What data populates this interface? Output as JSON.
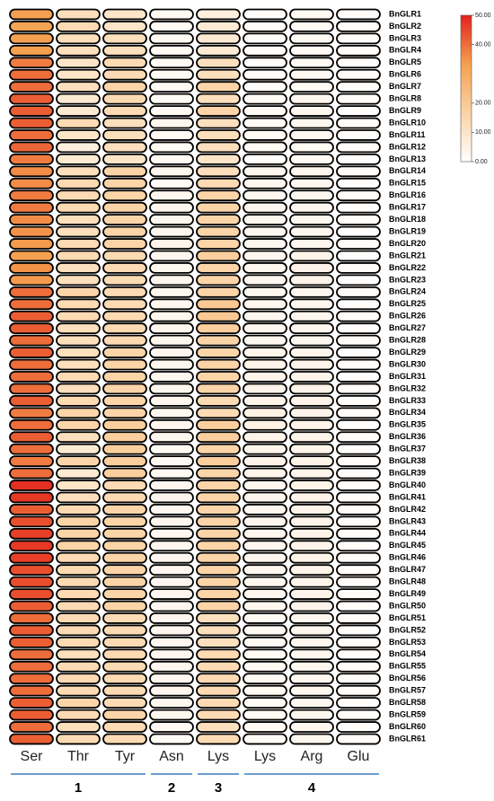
{
  "chart_data": {
    "type": "heatmap",
    "categories": [
      "BnGLR1",
      "BnGLR2",
      "BnGLR3",
      "BnGLR4",
      "BnGLR5",
      "BnGLR6",
      "BnGLR7",
      "BnGLR8",
      "BnGLR9",
      "BnGLR10",
      "BnGLR11",
      "BnGLR12",
      "BnGLR13",
      "BnGLR14",
      "BnGLR15",
      "BnGLR16",
      "BnGLR17",
      "BnGLR18",
      "BnGLR19",
      "BnGLR20",
      "BnGLR21",
      "BnGLR22",
      "BnGLR23",
      "BnGLR24",
      "BnGLR25",
      "BnGLR26",
      "BnGLR27",
      "BnGLR28",
      "BnGLR29",
      "BnGLR30",
      "BnGLR31",
      "BnGLR32",
      "BnGLR33",
      "BnGLR34",
      "BnGLR35",
      "BnGLR36",
      "BnGLR37",
      "BnGLR38",
      "BnGLR39",
      "BnGLR40",
      "BnGLR41",
      "BnGLR42",
      "BnGLR43",
      "BnGLR44",
      "BnGLR45",
      "BnGLR46",
      "BnGLR47",
      "BnGLR48",
      "BnGLR49",
      "BnGLR50",
      "BnGLR51",
      "BnGLR52",
      "BnGLR53",
      "BnGLR54",
      "BnGLR55",
      "BnGLR56",
      "BnGLR57",
      "BnGLR58",
      "BnGLR59",
      "BnGLR60",
      "BnGLR61"
    ],
    "series": [
      {
        "name": "Ser",
        "values": [
          33,
          32,
          33,
          33,
          38,
          40,
          40,
          42,
          42,
          42,
          40,
          41,
          38,
          36,
          36,
          38,
          38,
          36,
          35,
          34,
          33,
          35,
          34,
          40,
          40,
          42,
          42,
          40,
          42,
          40,
          40,
          40,
          42,
          38,
          40,
          42,
          40,
          38,
          40,
          48,
          47,
          42,
          44,
          46,
          47,
          46,
          44,
          44,
          44,
          42,
          40,
          42,
          42,
          40,
          40,
          40,
          40,
          42,
          42,
          40,
          42
        ]
      },
      {
        "name": "Thr",
        "values": [
          12,
          14,
          12,
          12,
          10,
          10,
          12,
          8,
          8,
          14,
          10,
          6,
          8,
          12,
          14,
          14,
          14,
          12,
          12,
          14,
          14,
          12,
          12,
          16,
          14,
          14,
          12,
          12,
          12,
          12,
          14,
          12,
          14,
          16,
          16,
          12,
          8,
          16,
          8,
          10,
          12,
          14,
          16,
          16,
          16,
          14,
          14,
          14,
          14,
          14,
          14,
          14,
          14,
          12,
          14,
          14,
          14,
          16,
          14,
          12,
          14
        ]
      },
      {
        "name": "Tyr",
        "values": [
          10,
          10,
          12,
          12,
          14,
          14,
          16,
          14,
          14,
          12,
          12,
          12,
          10,
          16,
          16,
          16,
          16,
          16,
          16,
          16,
          14,
          14,
          14,
          14,
          14,
          14,
          14,
          14,
          16,
          16,
          16,
          16,
          16,
          16,
          18,
          18,
          18,
          18,
          18,
          14,
          14,
          16,
          16,
          16,
          16,
          16,
          16,
          16,
          16,
          16,
          14,
          14,
          14,
          14,
          14,
          14,
          14,
          14,
          16,
          14,
          14
        ]
      },
      {
        "name": "Asn",
        "values": [
          2,
          2,
          2,
          2,
          2,
          2,
          2,
          2,
          2,
          3,
          2,
          2,
          2,
          3,
          2,
          3,
          3,
          3,
          3,
          4,
          3,
          3,
          3,
          3,
          3,
          3,
          3,
          3,
          3,
          3,
          3,
          3,
          3,
          3,
          3,
          3,
          2,
          2,
          2,
          3,
          3,
          3,
          3,
          3,
          3,
          3,
          3,
          3,
          3,
          3,
          3,
          3,
          3,
          3,
          3,
          3,
          3,
          3,
          3,
          2,
          2
        ]
      },
      {
        "name": "Lys",
        "values": [
          6,
          8,
          8,
          8,
          12,
          12,
          16,
          12,
          16,
          12,
          12,
          12,
          10,
          12,
          14,
          16,
          16,
          16,
          16,
          16,
          18,
          16,
          16,
          16,
          20,
          20,
          18,
          16,
          16,
          16,
          16,
          16,
          14,
          14,
          18,
          18,
          16,
          18,
          16,
          16,
          16,
          16,
          16,
          16,
          16,
          16,
          16,
          16,
          16,
          16,
          12,
          12,
          12,
          14,
          14,
          14,
          14,
          14,
          14,
          12,
          14
        ]
      },
      {
        "name": "Lys",
        "values": [
          1,
          1,
          1,
          1,
          1,
          1,
          1,
          2,
          2,
          2,
          2,
          2,
          1,
          3,
          3,
          3,
          3,
          3,
          3,
          3,
          3,
          3,
          3,
          3,
          3,
          3,
          3,
          3,
          4,
          4,
          4,
          4,
          4,
          5,
          5,
          4,
          4,
          4,
          4,
          3,
          3,
          3,
          3,
          3,
          3,
          3,
          3,
          3,
          3,
          3,
          2,
          2,
          2,
          2,
          2,
          2,
          2,
          2,
          2,
          2,
          2
        ]
      },
      {
        "name": "Arg",
        "values": [
          2,
          2,
          2,
          2,
          2,
          2,
          2,
          3,
          3,
          3,
          3,
          2,
          2,
          3,
          3,
          3,
          3,
          3,
          3,
          3,
          4,
          4,
          4,
          3,
          3,
          3,
          3,
          3,
          4,
          4,
          4,
          4,
          4,
          4,
          4,
          4,
          4,
          4,
          4,
          4,
          4,
          4,
          4,
          4,
          4,
          4,
          4,
          4,
          4,
          4,
          3,
          3,
          3,
          3,
          3,
          3,
          3,
          3,
          3,
          3,
          3
        ]
      },
      {
        "name": "Glu",
        "values": [
          1,
          1,
          1,
          1,
          1,
          1,
          1,
          1,
          1,
          1,
          1,
          1,
          1,
          1,
          1,
          1,
          1,
          1,
          1,
          1,
          1,
          1,
          1,
          1,
          1,
          1,
          1,
          1,
          1,
          1,
          1,
          1,
          1,
          1,
          1,
          1,
          1,
          1,
          1,
          1,
          1,
          1,
          1,
          1,
          1,
          1,
          1,
          1,
          1,
          1,
          1,
          1,
          1,
          1,
          1,
          1,
          1,
          1,
          1,
          1,
          1
        ]
      }
    ],
    "groups": [
      "1",
      "2",
      "3",
      "4"
    ],
    "zlim": [
      0,
      50
    ],
    "zticks": [
      {
        "value": 0,
        "label": "0.00"
      },
      {
        "value": 10,
        "label": "10.00"
      },
      {
        "value": 20,
        "label": "20.00"
      },
      {
        "value": 40,
        "label": "40.00"
      },
      {
        "value": 50,
        "label": "50.00"
      }
    ],
    "colorscale": [
      "#ffffff",
      "#fbd3a4",
      "#f5a04f",
      "#e2211c"
    ]
  }
}
